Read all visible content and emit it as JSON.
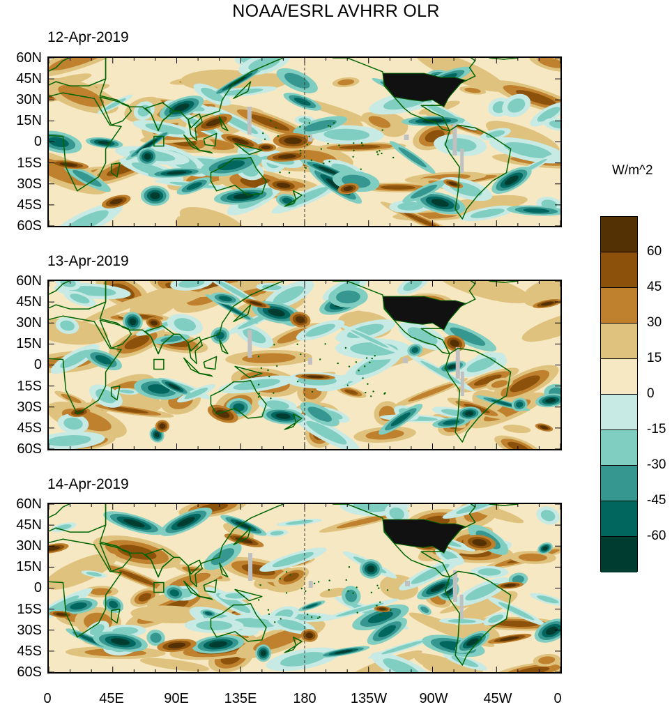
{
  "title": "NOAA/ESRL AVHRR OLR",
  "units": "W/m^2",
  "panels": [
    {
      "date": "12-Apr-2019",
      "seed": 11
    },
    {
      "date": "13-Apr-2019",
      "seed": 23
    },
    {
      "date": "14-Apr-2019",
      "seed": 37
    }
  ],
  "lat_labels": [
    "60N",
    "45N",
    "30N",
    "15N",
    "0",
    "15S",
    "30S",
    "45S",
    "60S"
  ],
  "lon_labels": [
    "0",
    "45E",
    "90E",
    "135E",
    "180",
    "135W",
    "90W",
    "45W",
    "0"
  ],
  "colorbar": {
    "labels": [
      "60",
      "45",
      "30",
      "15",
      "0",
      "-15",
      "-30",
      "-45",
      "-60"
    ],
    "colors": [
      "#543005",
      "#8c510a",
      "#bf812d",
      "#dfc27d",
      "#f6e8c3",
      "#c7eae5",
      "#80cdc1",
      "#35978f",
      "#01665e",
      "#003c30"
    ]
  },
  "coastline_color": "#006400",
  "missing_color": "#c0c0c0"
}
